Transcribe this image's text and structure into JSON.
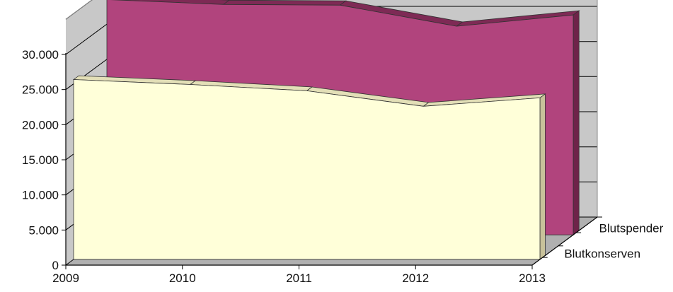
{
  "chart_data": {
    "type": "area",
    "style": "3d",
    "categories": [
      "2009",
      "2010",
      "2011",
      "2012",
      "2013"
    ],
    "series": [
      {
        "name": "Blutkonserven",
        "values": [
          25600,
          24900,
          24000,
          21800,
          23000
        ]
      },
      {
        "name": "Blutspender",
        "values": [
          33500,
          32800,
          32700,
          29700,
          31300
        ]
      }
    ],
    "y_ticks": [
      "0",
      "5.000",
      "10.000",
      "15.000",
      "20.000",
      "25.000",
      "30.000"
    ],
    "ylim": [
      0,
      35000
    ],
    "grid": true,
    "colors": {
      "Blutkonserven_front": "#ffffd9",
      "Blutkonserven_top": "#e3dfb7",
      "Blutkonserven_side": "#c8c29a",
      "Blutspender_front": "#b1447d",
      "Blutspender_top": "#7e2a55",
      "Blutspender_side": "#6e2349",
      "wall": "#c8c8c8",
      "floor": "#b0b0b0",
      "grid": "#000000"
    }
  }
}
